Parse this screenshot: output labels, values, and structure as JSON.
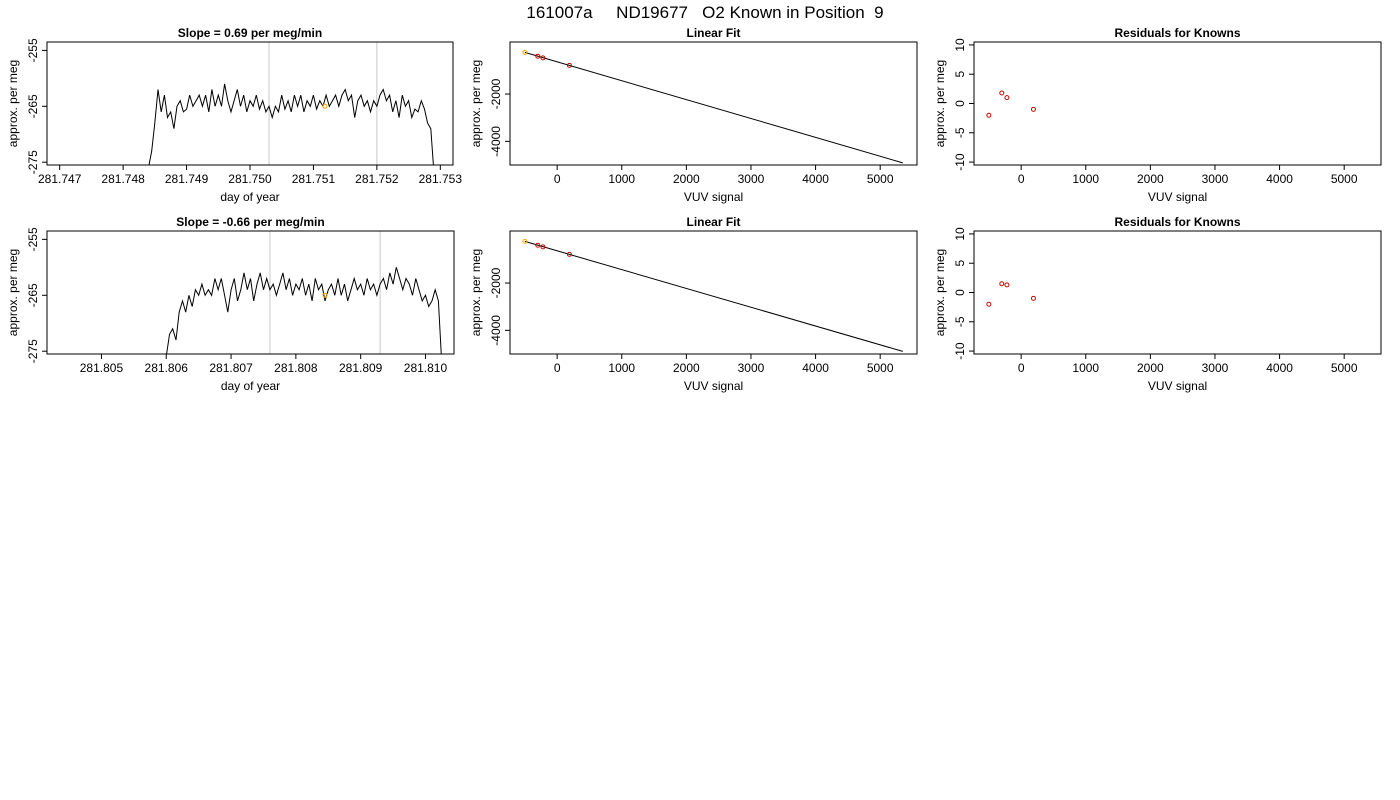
{
  "figure": {
    "title": "161007a     ND19677   O2 Known in Position  9"
  },
  "chart_data": [
    {
      "type": "line",
      "title": "Slope =  0.69  per meg/min",
      "xlabel": "day of year",
      "ylabel": "approx. per meg",
      "xlim": [
        281.7468,
        281.7532
      ],
      "ylim": [
        -275.5,
        -253.5
      ],
      "xticks": [
        "281.747",
        "281.748",
        "281.749",
        "281.750",
        "281.751",
        "281.752",
        "281.753"
      ],
      "yticks": [
        "-255",
        "-265",
        "-275"
      ],
      "grid": false,
      "vlines": [
        281.7503,
        281.752
      ],
      "series": [
        {
          "line_color": "#000000",
          "points": [
            [
              281.7484,
              -276
            ],
            [
              281.74845,
              -273
            ],
            [
              281.7485,
              -268
            ],
            [
              281.74855,
              -262
            ],
            [
              281.7486,
              -266
            ],
            [
              281.74865,
              -263
            ],
            [
              281.7487,
              -267
            ],
            [
              281.74875,
              -266
            ],
            [
              281.7488,
              -269
            ],
            [
              281.74885,
              -265
            ],
            [
              281.7489,
              -264
            ],
            [
              281.74895,
              -266
            ],
            [
              281.749,
              -265.5
            ],
            [
              281.74905,
              -263
            ],
            [
              281.7491,
              -265
            ],
            [
              281.74915,
              -264
            ],
            [
              281.7492,
              -263
            ],
            [
              281.74925,
              -265
            ],
            [
              281.7493,
              -263
            ],
            [
              281.74935,
              -266
            ],
            [
              281.7494,
              -262
            ],
            [
              281.74945,
              -265
            ],
            [
              281.7495,
              -263
            ],
            [
              281.74955,
              -265
            ],
            [
              281.7496,
              -261
            ],
            [
              281.74965,
              -264
            ],
            [
              281.7497,
              -266
            ],
            [
              281.74975,
              -264
            ],
            [
              281.7498,
              -262
            ],
            [
              281.74985,
              -265
            ],
            [
              281.7499,
              -263
            ],
            [
              281.74995,
              -266
            ],
            [
              281.75,
              -264
            ],
            [
              281.75005,
              -265
            ],
            [
              281.7501,
              -263
            ],
            [
              281.75015,
              -265.5
            ],
            [
              281.7502,
              -264
            ],
            [
              281.75025,
              -266
            ],
            [
              281.7503,
              -265
            ],
            [
              281.75035,
              -267
            ],
            [
              281.7504,
              -265
            ],
            [
              281.75045,
              -266
            ],
            [
              281.7505,
              -263
            ],
            [
              281.75055,
              -265.5
            ],
            [
              281.7506,
              -264
            ],
            [
              281.75065,
              -266
            ],
            [
              281.7507,
              -263
            ],
            [
              281.75075,
              -265
            ],
            [
              281.7508,
              -263
            ],
            [
              281.75085,
              -266
            ],
            [
              281.7509,
              -264
            ],
            [
              281.75095,
              -265
            ],
            [
              281.751,
              -263
            ],
            [
              281.75105,
              -265.5
            ],
            [
              281.7511,
              -264
            ],
            [
              281.75115,
              -265
            ],
            [
              281.7512,
              -263
            ],
            [
              281.75125,
              -265
            ],
            [
              281.7513,
              -264
            ],
            [
              281.75135,
              -263
            ],
            [
              281.7514,
              -265
            ],
            [
              281.75145,
              -263
            ],
            [
              281.7515,
              -262
            ],
            [
              281.75155,
              -264
            ],
            [
              281.7516,
              -263
            ],
            [
              281.75165,
              -267
            ],
            [
              281.7517,
              -264
            ],
            [
              281.75175,
              -263
            ],
            [
              281.7518,
              -265
            ],
            [
              281.75185,
              -264
            ],
            [
              281.7519,
              -266
            ],
            [
              281.75195,
              -264
            ],
            [
              281.752,
              -265
            ],
            [
              281.75205,
              -263
            ],
            [
              281.7521,
              -262
            ],
            [
              281.75215,
              -264
            ],
            [
              281.7522,
              -263
            ],
            [
              281.75225,
              -266
            ],
            [
              281.7523,
              -264
            ],
            [
              281.75235,
              -267
            ],
            [
              281.7524,
              -263
            ],
            [
              281.75245,
              -265
            ],
            [
              281.7525,
              -264
            ],
            [
              281.75255,
              -267
            ],
            [
              281.7526,
              -265.5
            ],
            [
              281.75265,
              -266
            ],
            [
              281.7527,
              -264
            ],
            [
              281.75275,
              -265.5
            ],
            [
              281.7528,
              -268
            ],
            [
              281.75285,
              -269
            ],
            [
              281.7529,
              -277
            ]
          ]
        }
      ],
      "markers": [
        {
          "x": 281.75118,
          "y": -265,
          "color": "#ffa500"
        }
      ]
    },
    {
      "type": "scatter",
      "title": "Linear Fit",
      "xlabel": "VUV signal",
      "ylabel": "approx. per meg",
      "xlim": [
        -730,
        5570
      ],
      "ylim": [
        -5000,
        200
      ],
      "xticks": [
        "0",
        "1000",
        "2000",
        "3000",
        "4000",
        "5000"
      ],
      "yticks": [
        "-2000",
        "-4000"
      ],
      "grid": false,
      "fit_line": [
        [
          -500,
          -240
        ],
        [
          5350,
          -4910
        ]
      ],
      "points": [
        {
          "x": -500,
          "y": -240,
          "color": "#ffa500"
        },
        {
          "x": -300,
          "y": -400,
          "color": "#cc0000"
        },
        {
          "x": -220,
          "y": -470,
          "color": "#cc0000"
        },
        {
          "x": 190,
          "y": -790,
          "color": "#cc0000"
        }
      ]
    },
    {
      "type": "scatter",
      "title": "Residuals for Knowns",
      "xlabel": "VUV signal",
      "ylabel": "approx. per meg",
      "xlim": [
        -730,
        5570
      ],
      "ylim": [
        -10.5,
        10.5
      ],
      "xticks": [
        "0",
        "1000",
        "2000",
        "3000",
        "4000",
        "5000"
      ],
      "yticks": [
        "10",
        "5",
        "0",
        "-5",
        "-10"
      ],
      "grid": false,
      "points": [
        {
          "x": -500,
          "y": -2,
          "color": "#cc0000"
        },
        {
          "x": -300,
          "y": 1.8,
          "color": "#cc0000"
        },
        {
          "x": -220,
          "y": 1,
          "color": "#cc0000"
        },
        {
          "x": 190,
          "y": -1,
          "color": "#cc0000"
        }
      ]
    },
    {
      "type": "line",
      "title": "Slope =  -0.66  per meg/min",
      "xlabel": "day of year",
      "ylabel": "approx. per meg",
      "xlim": [
        281.80416,
        281.81044
      ],
      "ylim": [
        -275.5,
        -253.5
      ],
      "xticks": [
        "281.805",
        "281.806",
        "281.807",
        "281.808",
        "281.809",
        "281.810"
      ],
      "yticks": [
        "-255",
        "-265",
        "-275"
      ],
      "grid": false,
      "vlines": [
        281.8076,
        281.8093
      ],
      "series": [
        {
          "line_color": "#000000",
          "points": [
            [
              281.806,
              -276
            ],
            [
              281.80605,
              -272
            ],
            [
              281.8061,
              -271
            ],
            [
              281.80615,
              -273
            ],
            [
              281.8062,
              -268
            ],
            [
              281.80625,
              -266
            ],
            [
              281.8063,
              -268
            ],
            [
              281.80635,
              -265
            ],
            [
              281.8064,
              -267
            ],
            [
              281.80645,
              -264
            ],
            [
              281.8065,
              -265
            ],
            [
              281.80655,
              -263
            ],
            [
              281.8066,
              -265
            ],
            [
              281.80665,
              -264
            ],
            [
              281.8067,
              -265
            ],
            [
              281.80675,
              -262
            ],
            [
              281.8068,
              -264
            ],
            [
              281.80685,
              -262
            ],
            [
              281.8069,
              -265
            ],
            [
              281.80695,
              -268
            ],
            [
              281.807,
              -264
            ],
            [
              281.80705,
              -262
            ],
            [
              281.8071,
              -266
            ],
            [
              281.80715,
              -264
            ],
            [
              281.8072,
              -261
            ],
            [
              281.80725,
              -264
            ],
            [
              281.8073,
              -262
            ],
            [
              281.80735,
              -266
            ],
            [
              281.8074,
              -263
            ],
            [
              281.80745,
              -261
            ],
            [
              281.8075,
              -264
            ],
            [
              281.80755,
              -262
            ],
            [
              281.8076,
              -264
            ],
            [
              281.80765,
              -263
            ],
            [
              281.8077,
              -265
            ],
            [
              281.80775,
              -263
            ],
            [
              281.8078,
              -261
            ],
            [
              281.80785,
              -264
            ],
            [
              281.8079,
              -262
            ],
            [
              281.80795,
              -265
            ],
            [
              281.808,
              -263
            ],
            [
              281.80805,
              -264
            ],
            [
              281.8081,
              -262
            ],
            [
              281.80815,
              -265
            ],
            [
              281.8082,
              -263
            ],
            [
              281.80825,
              -266
            ],
            [
              281.8083,
              -262
            ],
            [
              281.80835,
              -264
            ],
            [
              281.8084,
              -263
            ],
            [
              281.80845,
              -266
            ],
            [
              281.8085,
              -264
            ],
            [
              281.80855,
              -263
            ],
            [
              281.8086,
              -265
            ],
            [
              281.80865,
              -262
            ],
            [
              281.8087,
              -265
            ],
            [
              281.80875,
              -263
            ],
            [
              281.8088,
              -266
            ],
            [
              281.80885,
              -264
            ],
            [
              281.8089,
              -262
            ],
            [
              281.80895,
              -264
            ],
            [
              281.809,
              -263
            ],
            [
              281.80905,
              -265
            ],
            [
              281.8091,
              -262
            ],
            [
              281.80915,
              -264
            ],
            [
              281.8092,
              -263
            ],
            [
              281.80925,
              -265
            ],
            [
              281.8093,
              -263
            ],
            [
              281.80935,
              -262
            ],
            [
              281.8094,
              -264
            ],
            [
              281.80945,
              -261
            ],
            [
              281.8095,
              -263
            ],
            [
              281.80955,
              -260
            ],
            [
              281.8096,
              -262
            ],
            [
              281.80965,
              -264
            ],
            [
              281.8097,
              -262
            ],
            [
              281.80975,
              -263
            ],
            [
              281.8098,
              -265
            ],
            [
              281.80985,
              -262
            ],
            [
              281.8099,
              -264
            ],
            [
              281.80995,
              -266
            ],
            [
              281.81,
              -265
            ],
            [
              281.81005,
              -267
            ],
            [
              281.8101,
              -266
            ],
            [
              281.81015,
              -264
            ],
            [
              281.8102,
              -266
            ],
            [
              281.81025,
              -277
            ]
          ]
        }
      ],
      "markers": [
        {
          "x": 281.80845,
          "y": -265,
          "color": "#ffa500"
        }
      ]
    },
    {
      "type": "scatter",
      "title": "Linear Fit",
      "xlabel": "VUV signal",
      "ylabel": "approx. per meg",
      "xlim": [
        -730,
        5570
      ],
      "ylim": [
        -5000,
        200
      ],
      "xticks": [
        "0",
        "1000",
        "2000",
        "3000",
        "4000",
        "5000"
      ],
      "yticks": [
        "-2000",
        "-4000"
      ],
      "grid": false,
      "fit_line": [
        [
          -500,
          -240
        ],
        [
          5350,
          -4890
        ]
      ],
      "points": [
        {
          "x": -500,
          "y": -240,
          "color": "#ffa500"
        },
        {
          "x": -300,
          "y": -400,
          "color": "#cc0000"
        },
        {
          "x": -220,
          "y": -470,
          "color": "#cc0000"
        },
        {
          "x": 190,
          "y": -790,
          "color": "#cc0000"
        }
      ]
    },
    {
      "type": "scatter",
      "title": "Residuals for Knowns",
      "xlabel": "VUV signal",
      "ylabel": "approx. per meg",
      "xlim": [
        -730,
        5570
      ],
      "ylim": [
        -10.5,
        10.5
      ],
      "xticks": [
        "0",
        "1000",
        "2000",
        "3000",
        "4000",
        "5000"
      ],
      "yticks": [
        "10",
        "5",
        "0",
        "-5",
        "-10"
      ],
      "grid": false,
      "points": [
        {
          "x": -500,
          "y": -2,
          "color": "#cc0000"
        },
        {
          "x": -300,
          "y": 1.5,
          "color": "#cc0000"
        },
        {
          "x": -220,
          "y": 1.3,
          "color": "#cc0000"
        },
        {
          "x": 190,
          "y": -1,
          "color": "#cc0000"
        }
      ]
    }
  ]
}
